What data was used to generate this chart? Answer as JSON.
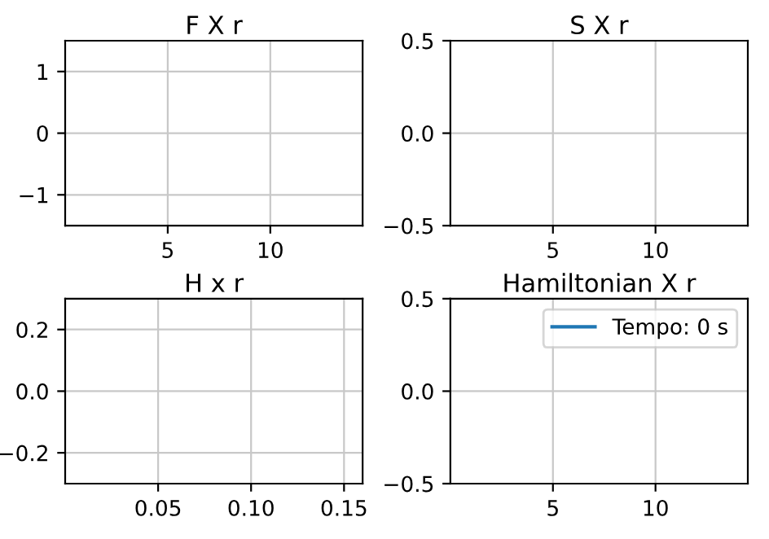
{
  "chart_data": [
    {
      "type": "line",
      "title": "F X r",
      "xlim": [
        0,
        14.5
      ],
      "xticks": [
        5,
        10
      ],
      "ylim": [
        -1.5,
        1.5
      ],
      "yticks": [
        {
          "value": -1,
          "label": "−1"
        },
        0,
        1
      ],
      "grid": true
    },
    {
      "type": "line",
      "title": "S X r",
      "xlim": [
        0,
        14.5
      ],
      "xticks": [
        5,
        10
      ],
      "ylim": [
        -0.5,
        0.5
      ],
      "yticks": [
        {
          "value": -0.5,
          "label": "−0.5"
        },
        {
          "value": 0,
          "label": "0.0"
        },
        0.5
      ],
      "grid": true
    },
    {
      "type": "line",
      "title": "H x r",
      "xlim": [
        0,
        0.16
      ],
      "xticks": [
        0.05,
        {
          "value": 0.1,
          "label": "0.10"
        },
        0.15
      ],
      "ylim": [
        -0.3,
        0.3
      ],
      "yticks": [
        {
          "value": -0.2,
          "label": "−0.2"
        },
        {
          "value": 0,
          "label": "0.0"
        },
        0.2
      ],
      "grid": true
    },
    {
      "type": "line",
      "title": "Hamiltonian X r",
      "series": [
        {
          "name": "Tempo: 0 s",
          "color": "#1f77b4",
          "x": [
            null
          ],
          "values": [
            null
          ]
        }
      ],
      "xlim": [
        0,
        14.5
      ],
      "xticks": [
        5,
        10
      ],
      "ylim": [
        -0.5,
        0.5
      ],
      "yticks": [
        {
          "value": -0.5,
          "label": "−0.5"
        },
        {
          "value": 0,
          "label": "0.0"
        },
        0.5
      ],
      "grid": true,
      "legend": "top right"
    }
  ]
}
